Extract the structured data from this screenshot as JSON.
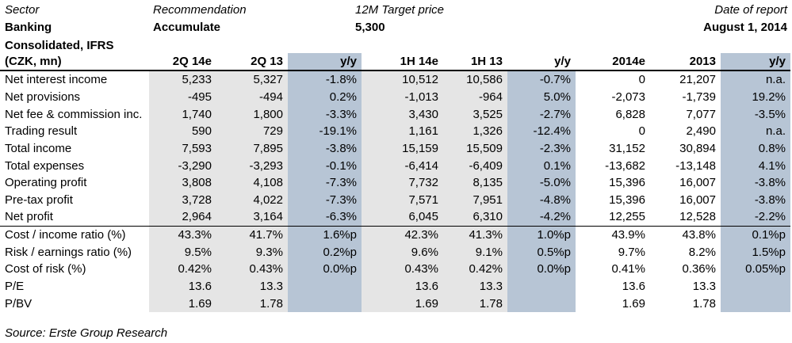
{
  "header": {
    "sector_label": "Sector",
    "recommendation_label": "Recommendation",
    "target_label": "12M Target price",
    "date_label": "Date of report",
    "sector_value": "Banking",
    "recommendation_value": "Accumulate",
    "target_value": "5,300",
    "date_value": "August 1, 2014",
    "consolidated": "Consolidated, IFRS",
    "units": "(CZK, mn)"
  },
  "table": {
    "columns": [
      "2Q 14e",
      "2Q 13",
      "y/y",
      "1H 14e",
      "1H 13",
      "y/y",
      "2014e",
      "2013",
      "y/y"
    ],
    "rows": [
      {
        "label": "Net interest income",
        "values": [
          "5,233",
          "5,327",
          "-1.8%",
          "10,512",
          "10,586",
          "-0.7%",
          "0",
          "21,207",
          "n.a."
        ]
      },
      {
        "label": "Net provisions",
        "values": [
          "-495",
          "-494",
          "0.2%",
          "-1,013",
          "-964",
          "5.0%",
          "-2,073",
          "-1,739",
          "19.2%"
        ]
      },
      {
        "label": "Net fee & commission inc.",
        "values": [
          "1,740",
          "1,800",
          "-3.3%",
          "3,430",
          "3,525",
          "-2.7%",
          "6,828",
          "7,077",
          "-3.5%"
        ]
      },
      {
        "label": "Trading result",
        "values": [
          "590",
          "729",
          "-19.1%",
          "1,161",
          "1,326",
          "-12.4%",
          "0",
          "2,490",
          "n.a."
        ]
      },
      {
        "label": "Total income",
        "values": [
          "7,593",
          "7,895",
          "-3.8%",
          "15,159",
          "15,509",
          "-2.3%",
          "31,152",
          "30,894",
          "0.8%"
        ]
      },
      {
        "label": "Total expenses",
        "values": [
          "-3,290",
          "-3,293",
          "-0.1%",
          "-6,414",
          "-6,409",
          "0.1%",
          "-13,682",
          "-13,148",
          "4.1%"
        ]
      },
      {
        "label": "Operating profit",
        "values": [
          "3,808",
          "4,108",
          "-7.3%",
          "7,732",
          "8,135",
          "-5.0%",
          "15,396",
          "16,007",
          "-3.8%"
        ]
      },
      {
        "label": "Pre-tax profit",
        "values": [
          "3,728",
          "4,022",
          "-7.3%",
          "7,571",
          "7,951",
          "-4.8%",
          "15,396",
          "16,007",
          "-3.8%"
        ]
      },
      {
        "label": "Net profit",
        "values": [
          "2,964",
          "3,164",
          "-6.3%",
          "6,045",
          "6,310",
          "-4.2%",
          "12,255",
          "12,528",
          "-2.2%"
        ]
      },
      {
        "label": "Cost / income ratio (%)",
        "values": [
          "43.3%",
          "41.7%",
          "1.6%p",
          "42.3%",
          "41.3%",
          "1.0%p",
          "43.9%",
          "43.8%",
          "0.1%p"
        ]
      },
      {
        "label": "Risk / earnings ratio (%)",
        "values": [
          "9.5%",
          "9.3%",
          "0.2%p",
          "9.6%",
          "9.1%",
          "0.5%p",
          "9.7%",
          "8.2%",
          "1.5%p"
        ]
      },
      {
        "label": "Cost of risk (%)",
        "values": [
          "0.42%",
          "0.43%",
          "0.0%p",
          "0.43%",
          "0.42%",
          "0.0%p",
          "0.41%",
          "0.36%",
          "0.05%p"
        ]
      },
      {
        "label": "P/E",
        "values": [
          "13.6",
          "13.3",
          "",
          "13.6",
          "13.3",
          "",
          "13.6",
          "13.3",
          ""
        ]
      },
      {
        "label": "P/BV",
        "values": [
          "1.69",
          "1.78",
          "",
          "1.69",
          "1.78",
          "",
          "1.69",
          "1.78",
          ""
        ]
      }
    ]
  },
  "source": "Source: Erste Group Research",
  "colors": {
    "gray_fill": "#e5e5e5",
    "blue_fill": "#b7c5d5"
  }
}
